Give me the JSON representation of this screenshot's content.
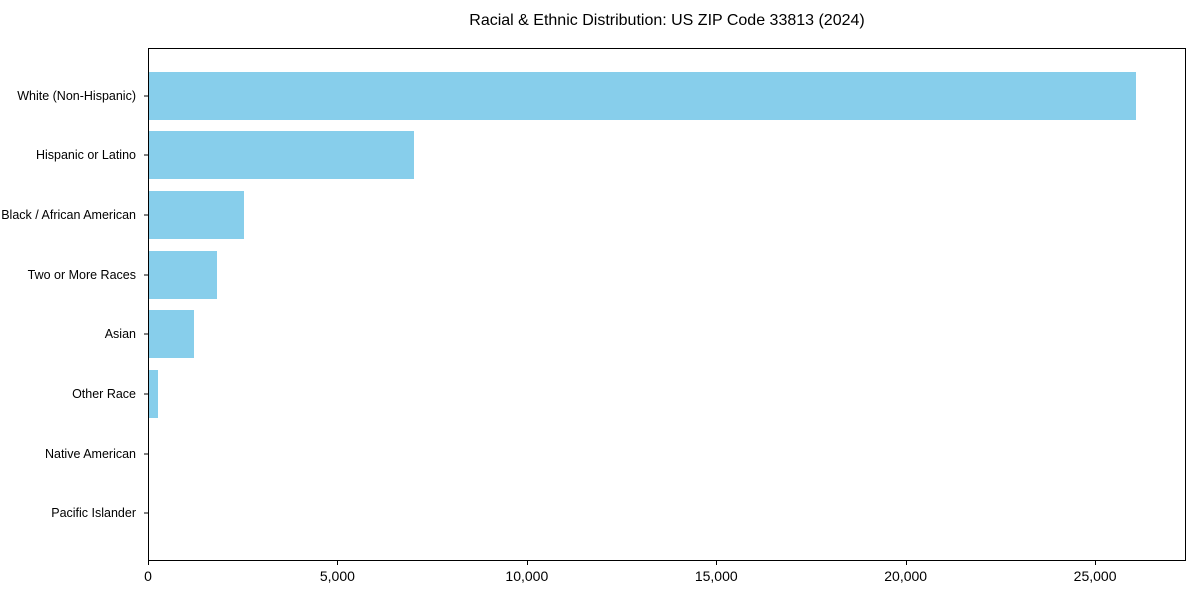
{
  "chart_data": {
    "type": "bar",
    "orientation": "horizontal",
    "title": "Racial & Ethnic Distribution: US ZIP Code 33813 (2024)",
    "categories": [
      "White (Non-Hispanic)",
      "Hispanic or Latino",
      "Black / African American",
      "Two or More Races",
      "Asian",
      "Other Race",
      "Native American",
      "Pacific Islander"
    ],
    "values": [
      26100,
      7000,
      2500,
      1800,
      1200,
      240,
      0,
      0
    ],
    "xlabel": "",
    "ylabel": "",
    "xlim": [
      0,
      27400
    ],
    "xticks": [
      0,
      5000,
      10000,
      15000,
      20000,
      25000
    ],
    "xtick_labels": [
      "0",
      "5,000",
      "10,000",
      "15,000",
      "20,000",
      "25,000"
    ],
    "bar_color": "#87CEEB",
    "spine_color": "#000000",
    "background_color": "#FFFFFF",
    "grid": false,
    "legend_position": "none"
  }
}
